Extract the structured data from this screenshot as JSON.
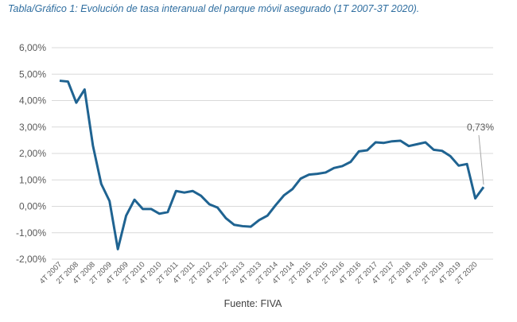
{
  "chart_data": {
    "type": "line",
    "title": "Tabla/Gráfico 1: Evolución de tasa interanual del parque móvil asegurado (1T 2007-3T 2020).",
    "source": "Fuente: FIVA",
    "categories": [
      "4T 2007",
      null,
      "2T 2008",
      null,
      "4T 2008",
      null,
      "2T 2009",
      null,
      "4T 2009",
      null,
      "2T 2010",
      null,
      "4T 2010",
      null,
      "2T 2011",
      null,
      "4T 2011",
      null,
      "2T 2012",
      null,
      "4T 2012",
      null,
      "2T 2013",
      null,
      "4T 2013",
      null,
      "2T 2014",
      null,
      "4T 2014",
      null,
      "2T 2015",
      null,
      "4T 2015",
      null,
      "2T 2016",
      null,
      "4T 2016",
      null,
      "2T 2017",
      null,
      "4T 2017",
      null,
      "2T 2018",
      null,
      "4T 2018",
      null,
      "2T 2019",
      null,
      "4T 2019",
      null,
      "2T 2020",
      null
    ],
    "series": [
      {
        "name": "Tasa interanual",
        "color": "#1f6391",
        "values": [
          4.75,
          4.72,
          3.92,
          4.42,
          2.3,
          0.85,
          0.2,
          -1.62,
          -0.35,
          0.25,
          -0.1,
          -0.1,
          -0.28,
          -0.22,
          0.58,
          0.52,
          0.58,
          0.4,
          0.08,
          -0.05,
          -0.45,
          -0.7,
          -0.75,
          -0.77,
          -0.52,
          -0.35,
          0.05,
          0.42,
          0.65,
          1.05,
          1.2,
          1.23,
          1.28,
          1.45,
          1.52,
          1.68,
          2.08,
          2.12,
          2.42,
          2.4,
          2.46,
          2.48,
          2.28,
          2.35,
          2.42,
          2.14,
          2.1,
          1.9,
          1.54,
          1.6,
          0.3,
          0.73
        ],
        "value_labels": [
          null,
          null,
          null,
          null,
          null,
          null,
          null,
          null,
          null,
          null,
          null,
          null,
          null,
          null,
          null,
          null,
          null,
          null,
          null,
          null,
          null,
          null,
          null,
          null,
          null,
          null,
          null,
          null,
          null,
          null,
          null,
          null,
          null,
          null,
          null,
          null,
          null,
          null,
          null,
          null,
          null,
          null,
          null,
          null,
          null,
          null,
          null,
          null,
          null,
          null,
          null,
          "0,73%"
        ]
      }
    ],
    "ylim": [
      -2,
      6
    ],
    "yticks": [
      {
        "value": -2,
        "label": "-2,00%"
      },
      {
        "value": -1,
        "label": "-1,00%"
      },
      {
        "value": 0,
        "label": "0,00%"
      },
      {
        "value": 1,
        "label": "1,00%"
      },
      {
        "value": 2,
        "label": "2,00%"
      },
      {
        "value": 3,
        "label": "3,00%"
      },
      {
        "value": 4,
        "label": "4,00%"
      },
      {
        "value": 5,
        "label": "5,00%"
      },
      {
        "value": 6,
        "label": "6,00%"
      }
    ],
    "grid": true
  }
}
